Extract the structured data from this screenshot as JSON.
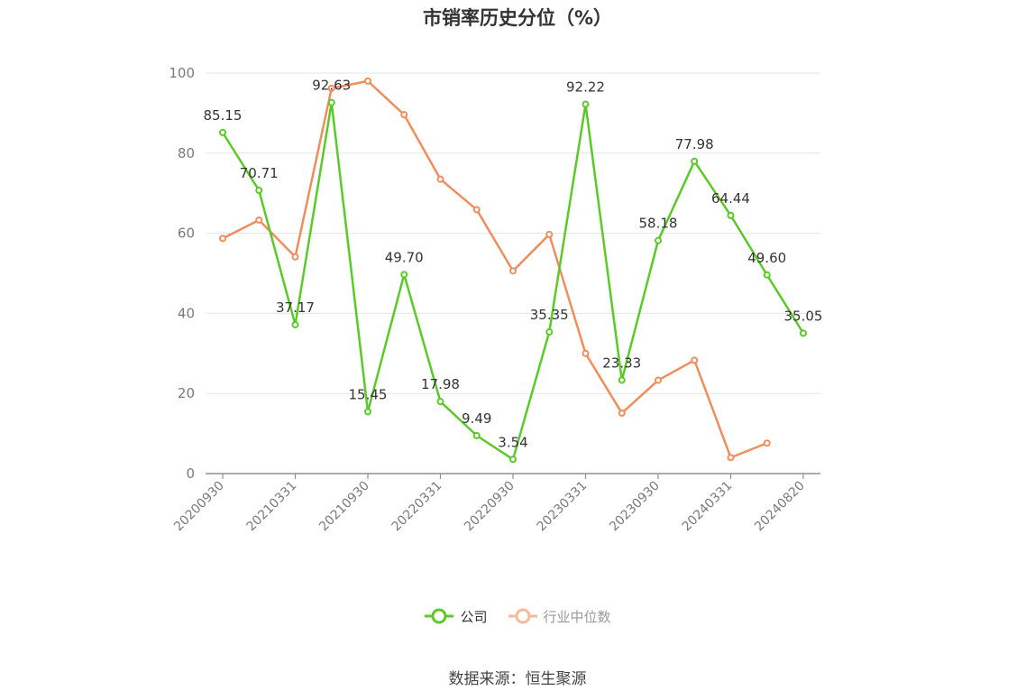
{
  "chart_data": {
    "type": "line",
    "title": "市销率历史分位（%）",
    "xlabel": "",
    "ylabel": "",
    "ylim": [
      0,
      100
    ],
    "yticks": [
      0,
      20,
      40,
      60,
      80,
      100
    ],
    "x": [
      "20200930",
      "20201231",
      "20210331",
      "20210630",
      "20210930",
      "20211231",
      "20220331",
      "20220630",
      "20220930",
      "20221231",
      "20230331",
      "20230630",
      "20230930",
      "20231231",
      "20240331",
      "20240630",
      "20240820"
    ],
    "x_tick_labels": [
      "20200930",
      "20210331",
      "20210930",
      "20220331",
      "20220930",
      "20230331",
      "20230930",
      "20240331",
      "20240820"
    ],
    "grid": true,
    "legend_position": "bottom",
    "series": [
      {
        "name": "公司",
        "color": "#5bc928",
        "values": [
          85.15,
          70.71,
          37.17,
          92.63,
          15.45,
          49.7,
          17.98,
          9.49,
          3.54,
          35.35,
          92.22,
          23.33,
          58.18,
          77.98,
          64.44,
          49.6,
          35.05
        ],
        "labels": [
          "85.15",
          "70.71",
          "37.17",
          "92.63",
          "15.45",
          "49.70",
          "17.98",
          "9.49",
          "3.54",
          "35.35",
          "92.22",
          "23.33",
          "58.18",
          "77.98",
          "64.44",
          "49.60",
          "35.05"
        ]
      },
      {
        "name": "行业中位数",
        "color": "#f08d5c",
        "values": [
          58.7,
          63.3,
          54.1,
          96.2,
          98.0,
          89.6,
          73.5,
          65.9,
          50.6,
          59.7,
          30.0,
          15.1,
          23.3,
          28.3,
          4.0,
          7.6,
          null
        ]
      }
    ]
  },
  "legend": {
    "company": "公司",
    "industry": "行业中位数"
  },
  "source": "数据来源：恒生聚源"
}
